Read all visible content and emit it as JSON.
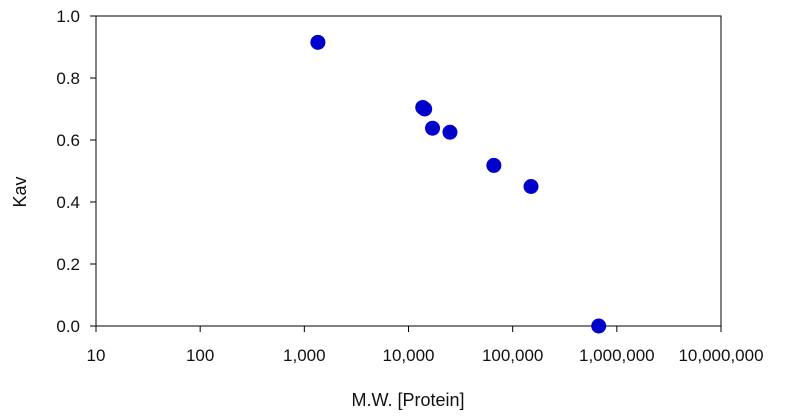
{
  "chart_data": {
    "type": "scatter",
    "xlabel": "M.W. [Protein]",
    "ylabel": "Kav",
    "x_scale": "log",
    "xlim": [
      10,
      10000000
    ],
    "ylim": [
      0.0,
      1.0
    ],
    "x_ticks": [
      10,
      100,
      1000,
      10000,
      100000,
      1000000,
      10000000
    ],
    "x_tick_labels": [
      "10",
      "100",
      "1,000",
      "10,000",
      "100,000",
      "1,000,000",
      "10,000,000"
    ],
    "y_ticks": [
      0.0,
      0.2,
      0.4,
      0.6,
      0.8,
      1.0
    ],
    "y_tick_labels": [
      "0.0",
      "0.2",
      "0.4",
      "0.6",
      "0.8",
      "1.0"
    ],
    "grid": false,
    "legend": "none",
    "marker_color": "#0000cc",
    "points": [
      {
        "x": 1350,
        "y": 0.915
      },
      {
        "x": 13700,
        "y": 0.705
      },
      {
        "x": 14300,
        "y": 0.7
      },
      {
        "x": 17000,
        "y": 0.638
      },
      {
        "x": 25000,
        "y": 0.625
      },
      {
        "x": 66000,
        "y": 0.518
      },
      {
        "x": 150000,
        "y": 0.45
      },
      {
        "x": 670000,
        "y": 0.0
      }
    ]
  }
}
